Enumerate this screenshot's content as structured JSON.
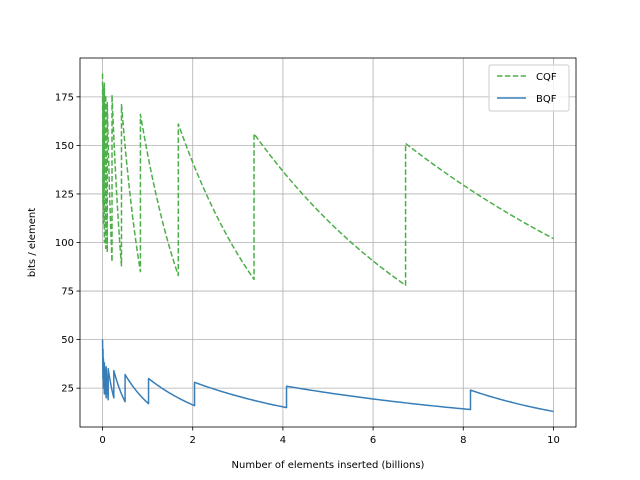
{
  "chart_data": {
    "type": "line",
    "title": "",
    "xlabel": "Number of elements inserted (billions)",
    "ylabel": "bits / element",
    "xlim": [
      -0.5,
      10.5
    ],
    "ylim": [
      5,
      195
    ],
    "xticks": [
      0,
      2,
      4,
      6,
      8,
      10
    ],
    "yticks": [
      25,
      50,
      75,
      100,
      125,
      150,
      175
    ],
    "grid": true,
    "legend_position": "upper right",
    "series": [
      {
        "name": "CQF",
        "color": "#4daf4a",
        "style": "dashed",
        "segments": [
          {
            "x0": 0.0,
            "x1": 0.01,
            "y0": 187,
            "y1": 120
          },
          {
            "x0": 0.01,
            "x1": 0.02,
            "y0": 180,
            "y1": 110
          },
          {
            "x0": 0.02,
            "x1": 0.04,
            "y0": 176,
            "y1": 100
          },
          {
            "x0": 0.04,
            "x1": 0.07,
            "y0": 182,
            "y1": 97
          },
          {
            "x0": 0.07,
            "x1": 0.105,
            "y0": 176,
            "y1": 95
          },
          {
            "x0": 0.105,
            "x1": 0.21,
            "y0": 172,
            "y1": 90
          },
          {
            "x0": 0.21,
            "x1": 0.42,
            "y0": 176,
            "y1": 88
          },
          {
            "x0": 0.42,
            "x1": 0.84,
            "y0": 171,
            "y1": 85
          },
          {
            "x0": 0.84,
            "x1": 1.68,
            "y0": 166,
            "y1": 83
          },
          {
            "x0": 1.68,
            "x1": 3.36,
            "y0": 161,
            "y1": 81
          },
          {
            "x0": 3.36,
            "x1": 6.72,
            "y0": 156,
            "y1": 78
          },
          {
            "x0": 6.72,
            "x1": 10.0,
            "y0": 151,
            "y1": 102
          }
        ]
      },
      {
        "name": "BQF",
        "color": "#377eb8",
        "style": "solid",
        "segments": [
          {
            "x0": 0.0,
            "x1": 0.01,
            "y0": 50,
            "y1": 30
          },
          {
            "x0": 0.01,
            "x1": 0.02,
            "y0": 45,
            "y1": 25
          },
          {
            "x0": 0.02,
            "x1": 0.04,
            "y0": 40,
            "y1": 22
          },
          {
            "x0": 0.04,
            "x1": 0.08,
            "y0": 38,
            "y1": 20
          },
          {
            "x0": 0.08,
            "x1": 0.125,
            "y0": 36,
            "y1": 19
          },
          {
            "x0": 0.125,
            "x1": 0.25,
            "y0": 35,
            "y1": 20
          },
          {
            "x0": 0.25,
            "x1": 0.5,
            "y0": 34,
            "y1": 18
          },
          {
            "x0": 0.5,
            "x1": 1.02,
            "y0": 32,
            "y1": 17
          },
          {
            "x0": 1.02,
            "x1": 2.04,
            "y0": 30,
            "y1": 16
          },
          {
            "x0": 2.04,
            "x1": 4.08,
            "y0": 28,
            "y1": 15
          },
          {
            "x0": 4.08,
            "x1": 8.16,
            "y0": 26,
            "y1": 14
          },
          {
            "x0": 8.16,
            "x1": 10.0,
            "y0": 24,
            "y1": 13
          }
        ]
      }
    ]
  }
}
